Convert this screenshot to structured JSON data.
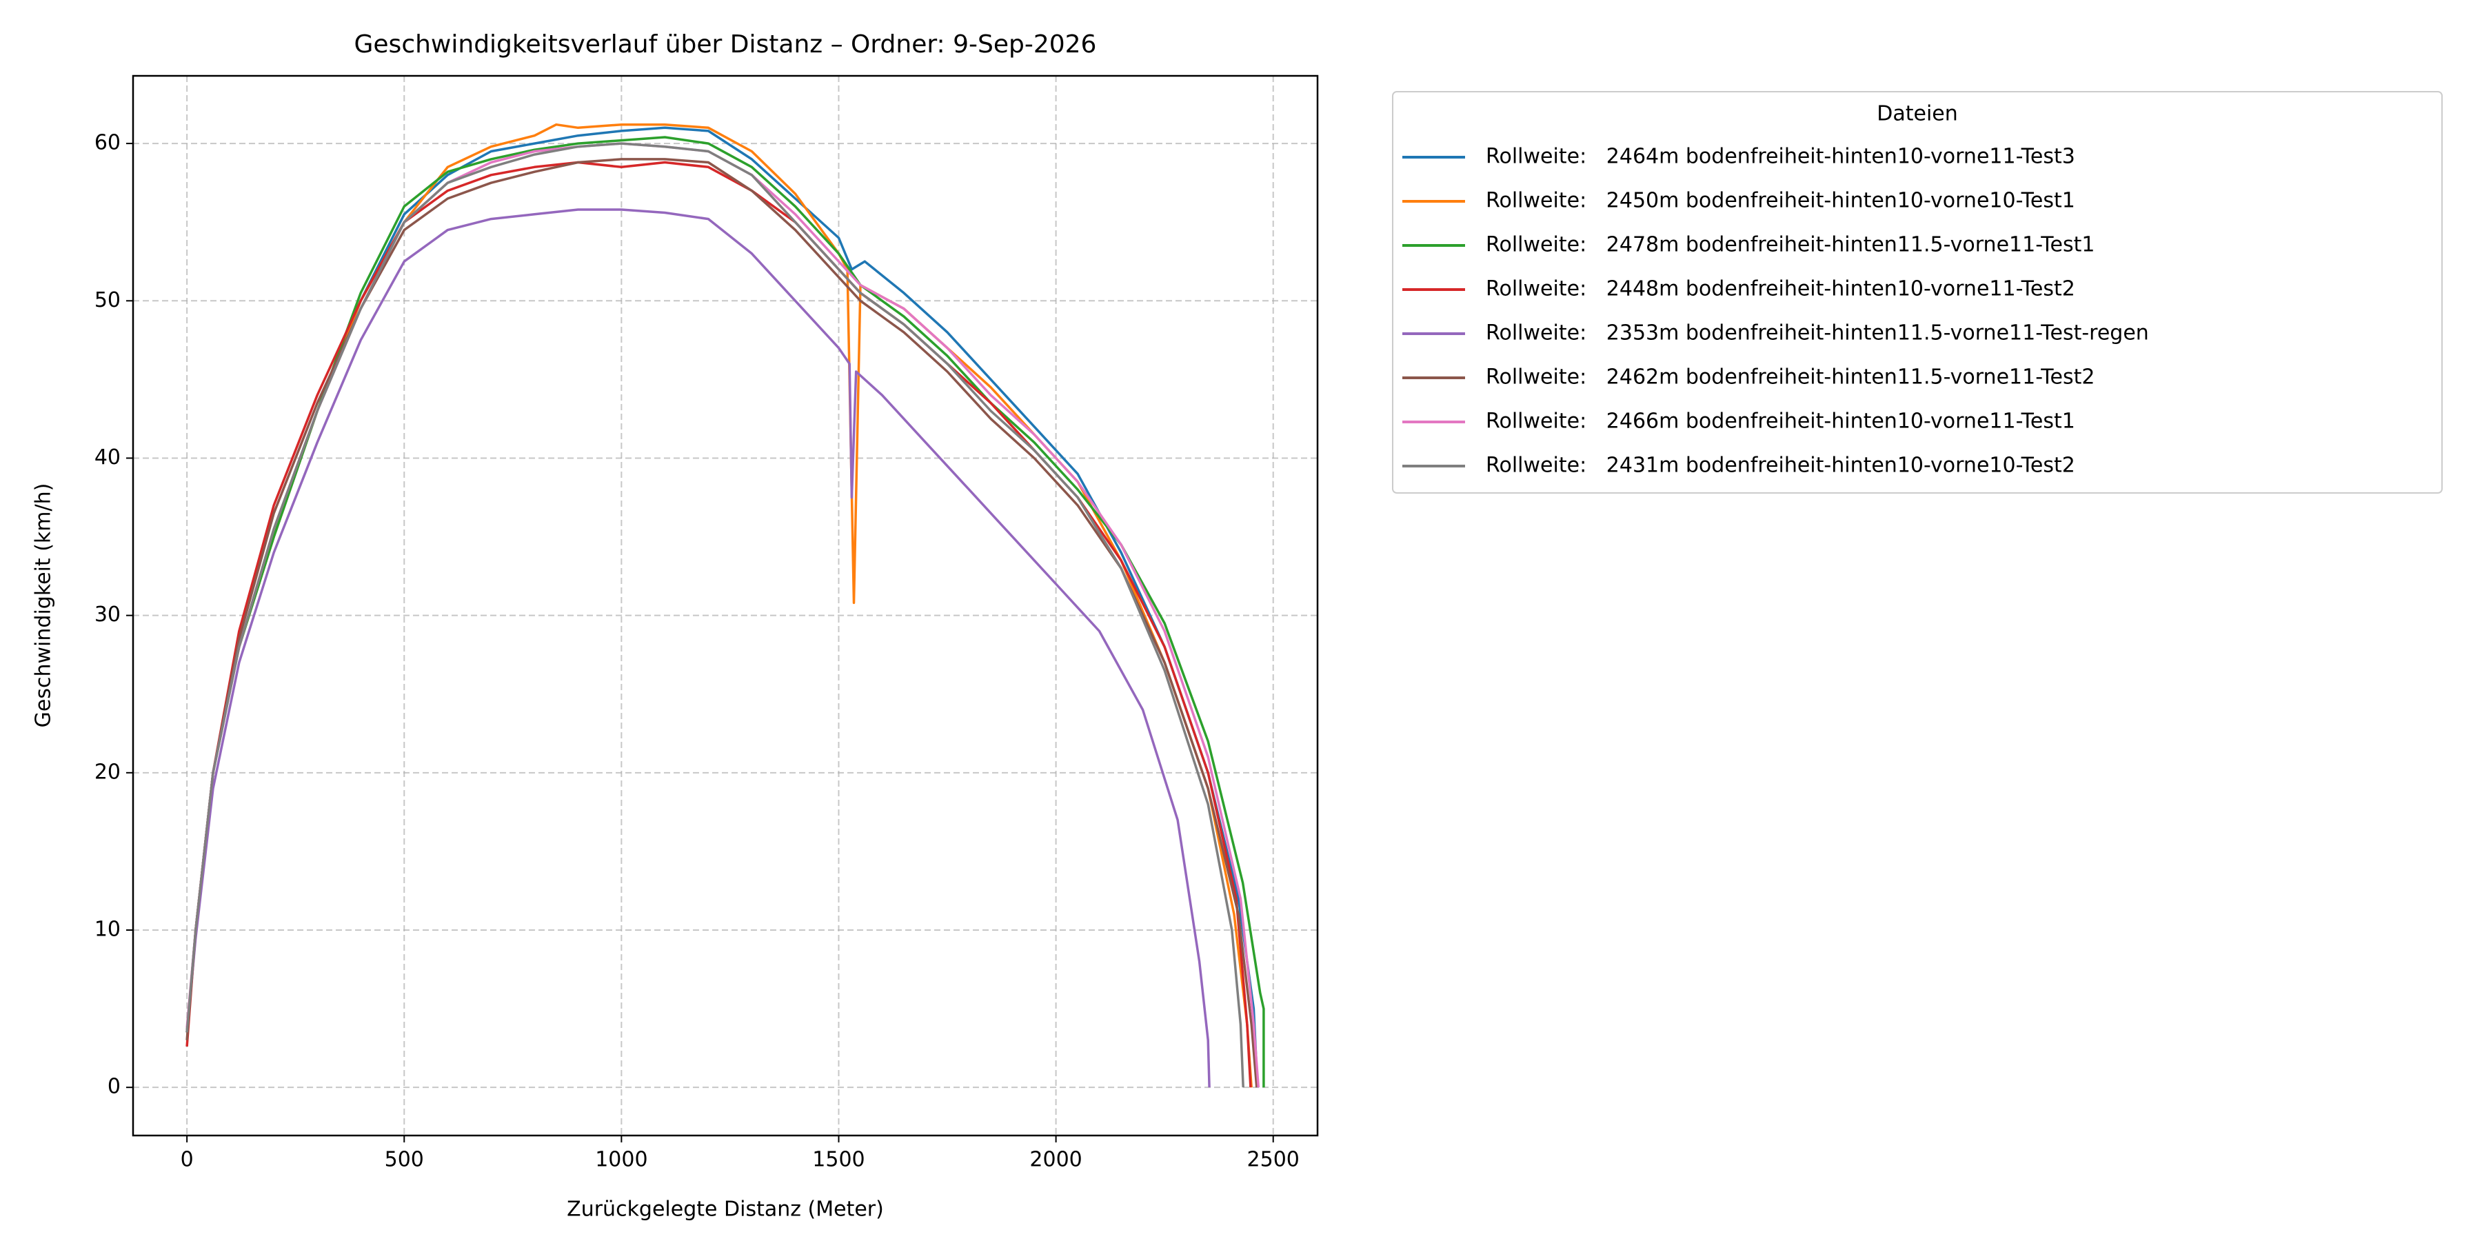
{
  "chart_data": {
    "type": "line",
    "title": "Geschwindigkeitsverlauf über Distanz – Ordner: 9-Sep-2026",
    "x_label": "Zurückgelegte Distanz (Meter)",
    "y_label": "Geschwindigkeit (km/h)",
    "legend_title": "Dateien",
    "legend": "outside upper right",
    "grid": true,
    "xlim": [
      -124,
      2602
    ],
    "ylim": [
      -3.06,
      64.3
    ],
    "xticks": [
      0,
      500,
      1000,
      1500,
      2000,
      2500
    ],
    "yticks": [
      0,
      10,
      20,
      30,
      40,
      50,
      60
    ],
    "series": [
      {
        "name": "Rollweite:   2464m bodenfreiheit-hinten10-vorne11-Test3",
        "color": "#1f77b4",
        "x": [
          0,
          20,
          60,
          120,
          200,
          300,
          400,
          500,
          600,
          700,
          800,
          900,
          1000,
          1100,
          1200,
          1300,
          1400,
          1500,
          1530,
          1560,
          1650,
          1750,
          1850,
          1950,
          2050,
          2150,
          2250,
          2350,
          2420,
          2455,
          2464
        ],
        "values": [
          3.5,
          10,
          20,
          28,
          35,
          43,
          50,
          55.5,
          58,
          59.5,
          60,
          60.5,
          60.8,
          61,
          60.8,
          59,
          56.5,
          54,
          52,
          52.5,
          50.5,
          48,
          45,
          42,
          39,
          34,
          28,
          20,
          12,
          5,
          0
        ]
      },
      {
        "name": "Rollweite:   2450m bodenfreiheit-hinten10-vorne10-Test1",
        "color": "#ff7f0e",
        "x": [
          0,
          20,
          60,
          120,
          200,
          300,
          400,
          500,
          600,
          700,
          800,
          850,
          900,
          1000,
          1100,
          1200,
          1300,
          1400,
          1500,
          1520,
          1535,
          1550,
          1650,
          1750,
          1850,
          1950,
          2050,
          2150,
          2250,
          2350,
          2410,
          2440,
          2450
        ],
        "values": [
          3.5,
          10,
          20,
          28,
          35,
          43,
          50,
          55,
          58.5,
          59.8,
          60.5,
          61.2,
          61,
          61.2,
          61.2,
          61,
          59.5,
          56.8,
          53,
          52,
          30.8,
          51,
          49.5,
          47,
          44.5,
          41.5,
          38.5,
          33.5,
          27,
          19,
          11,
          4,
          0
        ]
      },
      {
        "name": "Rollweite:   2478m bodenfreiheit-hinten11.5-vorne11-Test1",
        "color": "#2ca02c",
        "x": [
          0,
          20,
          60,
          120,
          200,
          300,
          400,
          500,
          600,
          700,
          800,
          900,
          1000,
          1100,
          1200,
          1300,
          1400,
          1500,
          1550,
          1650,
          1750,
          1850,
          1950,
          2050,
          2150,
          2250,
          2350,
          2430,
          2470,
          2478,
          2478
        ],
        "values": [
          3.5,
          10,
          20,
          28,
          35,
          43,
          50.5,
          56,
          58.2,
          59,
          59.6,
          60,
          60.2,
          60.4,
          60,
          58.5,
          56,
          53,
          51,
          49,
          46.5,
          43.5,
          41,
          38,
          34.5,
          29.5,
          22,
          13,
          6,
          5,
          0
        ]
      },
      {
        "name": "Rollweite:   2448m bodenfreiheit-hinten10-vorne11-Test2",
        "color": "#d62728",
        "x": [
          0,
          20,
          60,
          120,
          200,
          300,
          400,
          500,
          600,
          700,
          800,
          900,
          1000,
          1100,
          1200,
          1300,
          1400,
          1500,
          1550,
          1650,
          1750,
          1850,
          1950,
          2050,
          2150,
          2250,
          2350,
          2415,
          2440,
          2448
        ],
        "values": [
          2.6,
          10,
          20,
          29,
          37,
          44,
          50,
          55,
          57,
          58,
          58.5,
          58.8,
          58.5,
          58.8,
          58.5,
          57,
          55,
          52,
          50.5,
          48.5,
          46,
          43.5,
          40.5,
          37.5,
          33.5,
          28,
          20,
          12,
          4,
          0
        ]
      },
      {
        "name": "Rollweite:   2353m bodenfreiheit-hinten11.5-vorne11-Test-regen",
        "color": "#9467bd",
        "x": [
          0,
          20,
          60,
          120,
          200,
          300,
          400,
          500,
          600,
          700,
          800,
          900,
          1000,
          1100,
          1200,
          1300,
          1400,
          1500,
          1525,
          1530,
          1540,
          1600,
          1700,
          1800,
          1900,
          2000,
          2100,
          2200,
          2280,
          2330,
          2350,
          2353
        ],
        "values": [
          3.5,
          9.5,
          19,
          27,
          34,
          41,
          47.5,
          52.5,
          54.5,
          55.2,
          55.5,
          55.8,
          55.8,
          55.6,
          55.2,
          53,
          50,
          47,
          46,
          37.5,
          45.5,
          44,
          41,
          38,
          35,
          32,
          29,
          24,
          17,
          8,
          3,
          0
        ]
      },
      {
        "name": "Rollweite:   2462m bodenfreiheit-hinten11.5-vorne11-Test2",
        "color": "#8c564b",
        "x": [
          0,
          20,
          60,
          120,
          200,
          300,
          400,
          500,
          600,
          700,
          800,
          900,
          1000,
          1100,
          1200,
          1300,
          1400,
          1500,
          1550,
          1650,
          1750,
          1850,
          1950,
          2050,
          2150,
          2250,
          2350,
          2420,
          2450,
          2462
        ],
        "values": [
          3,
          10,
          20,
          28.5,
          36.5,
          43.5,
          49.5,
          54.5,
          56.5,
          57.5,
          58.2,
          58.8,
          59,
          59,
          58.8,
          57,
          54.5,
          51.5,
          50,
          48,
          45.5,
          42.5,
          40,
          37,
          33,
          27,
          19,
          11,
          4,
          0
        ]
      },
      {
        "name": "Rollweite:   2466m bodenfreiheit-hinten10-vorne11-Test1",
        "color": "#e377c2",
        "x": [
          0,
          20,
          60,
          120,
          200,
          300,
          400,
          500,
          600,
          700,
          800,
          900,
          1000,
          1100,
          1200,
          1300,
          1400,
          1500,
          1550,
          1650,
          1750,
          1850,
          1950,
          2050,
          2150,
          2250,
          2350,
          2425,
          2455,
          2466
        ],
        "values": [
          3.8,
          10,
          20,
          28,
          35.5,
          43,
          49.5,
          55,
          57.5,
          58.8,
          59.5,
          59.8,
          60,
          59.8,
          59.5,
          58,
          55.5,
          52.5,
          51,
          49.5,
          47,
          44,
          41.5,
          38.5,
          34.5,
          29,
          21,
          12,
          4,
          0
        ]
      },
      {
        "name": "Rollweite:   2431m bodenfreiheit-hinten10-vorne10-Test2",
        "color": "#7f7f7f",
        "x": [
          0,
          20,
          60,
          120,
          200,
          300,
          400,
          500,
          600,
          700,
          800,
          900,
          1000,
          1100,
          1200,
          1300,
          1400,
          1500,
          1550,
          1650,
          1750,
          1850,
          1950,
          2050,
          2150,
          2250,
          2350,
          2405,
          2425,
          2431
        ],
        "values": [
          3.5,
          10,
          20,
          28,
          35.5,
          43,
          49.5,
          55,
          57.5,
          58.5,
          59.3,
          59.8,
          60,
          59.8,
          59.5,
          58,
          55,
          52,
          50.5,
          48.5,
          46,
          43,
          40.5,
          37.5,
          33,
          26.5,
          18,
          10,
          4,
          0
        ]
      }
    ]
  }
}
